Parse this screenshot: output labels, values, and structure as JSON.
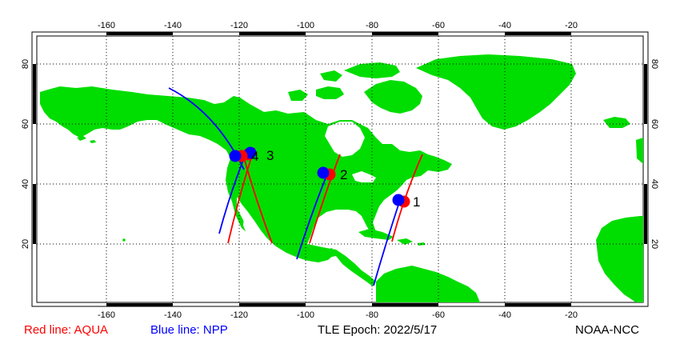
{
  "map": {
    "lon_ticks": [
      "-160",
      "-140",
      "-120",
      "-100",
      "-80",
      "-60",
      "-40",
      "-20"
    ],
    "lat_ticks": [
      "20",
      "40",
      "60",
      "80"
    ],
    "colors": {
      "land": "#00dd00",
      "ocean": "#ffffff",
      "aqua": "#ff0000",
      "npp": "#0000ff",
      "grid": "#000000"
    },
    "markers": [
      {
        "label": "1"
      },
      {
        "label": "2"
      },
      {
        "label": "3"
      },
      {
        "label": "4"
      }
    ]
  },
  "footer": {
    "aqua_legend": "Red line: AQUA",
    "npp_legend": "Blue line: NPP",
    "epoch": "TLE Epoch: 2022/5/17",
    "credit": "NOAA-NCC"
  }
}
